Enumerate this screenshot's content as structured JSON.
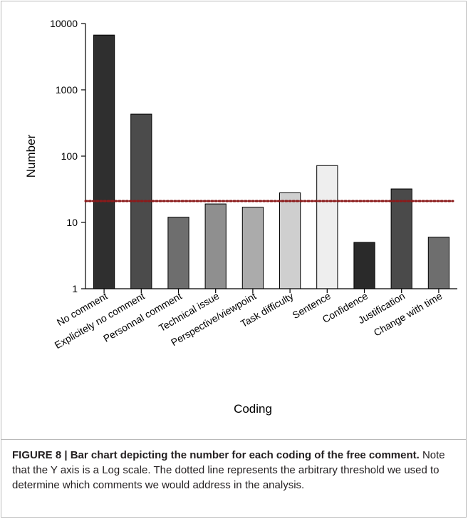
{
  "chart_data": {
    "type": "bar",
    "categories": [
      "No comment",
      "Explicitely no comment",
      "Personnal comment",
      "Technical issue",
      "Perspective/viewpoint",
      "Task difficulty",
      "Sentence",
      "Confidence",
      "Justification",
      "Change with time"
    ],
    "values": [
      6700,
      430,
      12,
      19,
      17,
      28,
      72,
      5,
      32,
      6
    ],
    "bar_colors": [
      "#2f2f2f",
      "#4b4b4b",
      "#6e6e6e",
      "#8f8f8f",
      "#ababab",
      "#cfcfcf",
      "#eeeeee",
      "#2a2a2a",
      "#4a4a4a",
      "#6e6e6e"
    ],
    "xlabel": "Coding",
    "ylabel": "Number",
    "yscale": "log",
    "ylim": [
      1,
      10000
    ],
    "yticks": [
      1,
      10,
      100,
      1000,
      10000
    ],
    "ytick_labels": [
      "1",
      "10",
      "100",
      "1000",
      "10000"
    ],
    "threshold": 21,
    "threshold_color": "#8b1a1a",
    "grid": false
  },
  "caption": {
    "lead": "FIGURE 8 | Bar chart depicting the number for each coding of the free comment.",
    "body": " Note that the Y axis is a Log scale. The dotted line represents the arbitrary threshold we used to determine which comments we would address in the analysis."
  }
}
